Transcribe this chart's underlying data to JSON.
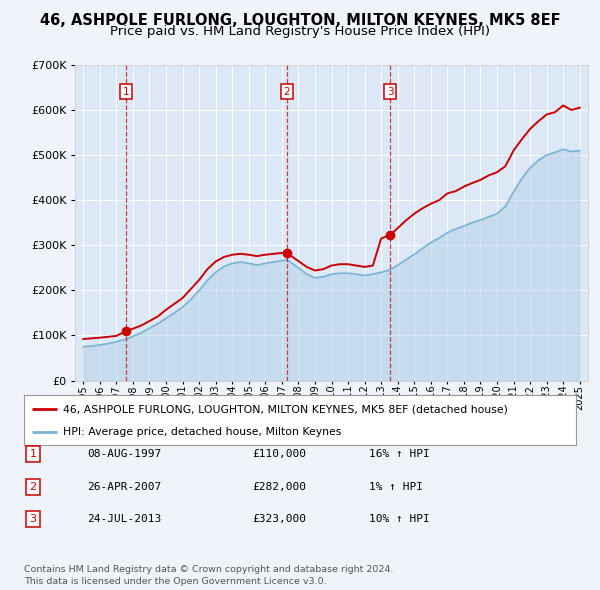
{
  "title": "46, ASHPOLE FURLONG, LOUGHTON, MILTON KEYNES, MK5 8EF",
  "subtitle": "Price paid vs. HM Land Registry's House Price Index (HPI)",
  "title_fontsize": 10.5,
  "subtitle_fontsize": 9.5,
  "background_color": "#f0f4fa",
  "plot_bg_color": "#dce8f5",
  "legend_label_red": "46, ASHPOLE FURLONG, LOUGHTON, MILTON KEYNES, MK5 8EF (detached house)",
  "legend_label_blue": "HPI: Average price, detached house, Milton Keynes",
  "footer1": "Contains HM Land Registry data © Crown copyright and database right 2024.",
  "footer2": "This data is licensed under the Open Government Licence v3.0.",
  "transactions": [
    {
      "num": 1,
      "date": "08-AUG-1997",
      "price": 110000,
      "hpi_pct": "16%",
      "year": 1997.6
    },
    {
      "num": 2,
      "date": "26-APR-2007",
      "price": 282000,
      "hpi_pct": "1%",
      "year": 2007.3
    },
    {
      "num": 3,
      "date": "24-JUL-2013",
      "price": 323000,
      "hpi_pct": "10%",
      "year": 2013.55
    }
  ],
  "red_line_x": [
    1995.0,
    1995.3,
    1995.6,
    1996.0,
    1996.5,
    1997.0,
    1997.6,
    1998.0,
    1998.5,
    1999.0,
    1999.5,
    2000.0,
    2000.5,
    2001.0,
    2001.5,
    2002.0,
    2002.5,
    2003.0,
    2003.5,
    2004.0,
    2004.5,
    2005.0,
    2005.5,
    2006.0,
    2006.5,
    2007.0,
    2007.3,
    2007.5,
    2008.0,
    2008.5,
    2009.0,
    2009.5,
    2010.0,
    2010.5,
    2011.0,
    2011.5,
    2012.0,
    2012.5,
    2013.0,
    2013.55,
    2014.0,
    2014.5,
    2015.0,
    2015.5,
    2016.0,
    2016.5,
    2017.0,
    2017.5,
    2018.0,
    2018.5,
    2019.0,
    2019.5,
    2020.0,
    2020.5,
    2021.0,
    2021.5,
    2022.0,
    2022.5,
    2023.0,
    2023.5,
    2024.0,
    2024.5,
    2025.0
  ],
  "red_line_y": [
    92000,
    93000,
    94000,
    95000,
    97000,
    99000,
    110000,
    115000,
    122000,
    132000,
    142000,
    157000,
    170000,
    183000,
    203000,
    223000,
    247000,
    264000,
    274000,
    279000,
    281000,
    279000,
    276000,
    279000,
    281000,
    283000,
    282000,
    278000,
    265000,
    252000,
    244000,
    247000,
    255000,
    258000,
    258000,
    255000,
    252000,
    255000,
    315000,
    323000,
    338000,
    355000,
    370000,
    382000,
    392000,
    400000,
    415000,
    420000,
    430000,
    438000,
    445000,
    455000,
    462000,
    475000,
    510000,
    535000,
    558000,
    575000,
    590000,
    595000,
    610000,
    600000,
    605000
  ],
  "blue_line_x": [
    1995.0,
    1995.3,
    1995.6,
    1996.0,
    1996.5,
    1997.0,
    1997.6,
    1998.0,
    1998.5,
    1999.0,
    1999.5,
    2000.0,
    2000.5,
    2001.0,
    2001.5,
    2002.0,
    2002.5,
    2003.0,
    2003.5,
    2004.0,
    2004.5,
    2005.0,
    2005.5,
    2006.0,
    2006.5,
    2007.0,
    2007.3,
    2007.5,
    2008.0,
    2008.5,
    2009.0,
    2009.5,
    2010.0,
    2010.5,
    2011.0,
    2011.5,
    2012.0,
    2012.5,
    2013.0,
    2013.55,
    2014.0,
    2014.5,
    2015.0,
    2015.5,
    2016.0,
    2016.5,
    2017.0,
    2017.5,
    2018.0,
    2018.5,
    2019.0,
    2019.5,
    2020.0,
    2020.5,
    2021.0,
    2021.5,
    2022.0,
    2022.5,
    2023.0,
    2023.5,
    2024.0,
    2024.5,
    2025.0
  ],
  "blue_line_y": [
    75000,
    76000,
    77000,
    79000,
    82000,
    86000,
    92000,
    98000,
    106000,
    116000,
    126000,
    138000,
    150000,
    163000,
    180000,
    200000,
    222000,
    240000,
    253000,
    260000,
    263000,
    260000,
    256000,
    260000,
    263000,
    266000,
    268000,
    263000,
    250000,
    236000,
    228000,
    230000,
    236000,
    238000,
    238000,
    236000,
    233000,
    236000,
    240000,
    246000,
    256000,
    268000,
    280000,
    293000,
    306000,
    316000,
    328000,
    336000,
    343000,
    350000,
    356000,
    363000,
    370000,
    386000,
    418000,
    448000,
    472000,
    488000,
    500000,
    506000,
    513000,
    508000,
    510000
  ],
  "ylim": [
    0,
    700000
  ],
  "xlim": [
    1994.5,
    2025.5
  ],
  "yticks": [
    0,
    100000,
    200000,
    300000,
    400000,
    500000,
    600000,
    700000
  ],
  "xticks": [
    1995,
    1996,
    1997,
    1998,
    1999,
    2000,
    2001,
    2002,
    2003,
    2004,
    2005,
    2006,
    2007,
    2008,
    2009,
    2010,
    2011,
    2012,
    2013,
    2014,
    2015,
    2016,
    2017,
    2018,
    2019,
    2020,
    2021,
    2022,
    2023,
    2024,
    2025
  ]
}
